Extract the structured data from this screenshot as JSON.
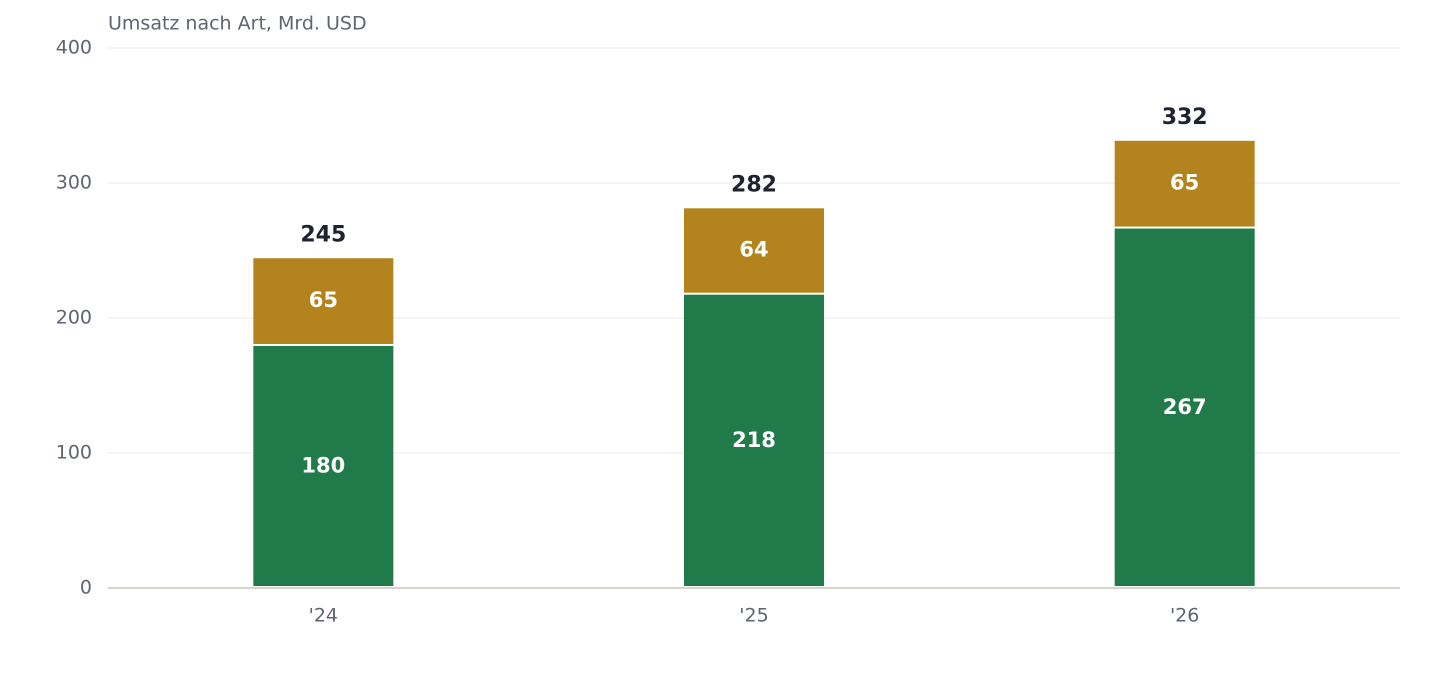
{
  "chart_data": {
    "type": "stacked-bar",
    "title": "Umsatz nach Art, Mrd. USD",
    "categories": [
      "'24",
      "'25",
      "'26"
    ],
    "series": [
      {
        "color": "#217a4a",
        "values": [
          180,
          218,
          267
        ]
      },
      {
        "color": "#b3831d",
        "values": [
          65,
          64,
          65
        ]
      }
    ],
    "totals": [
      245,
      282,
      332
    ],
    "ylim": [
      0,
      400
    ],
    "yticks": [
      0,
      100,
      200,
      300,
      400
    ],
    "grid": true
  }
}
